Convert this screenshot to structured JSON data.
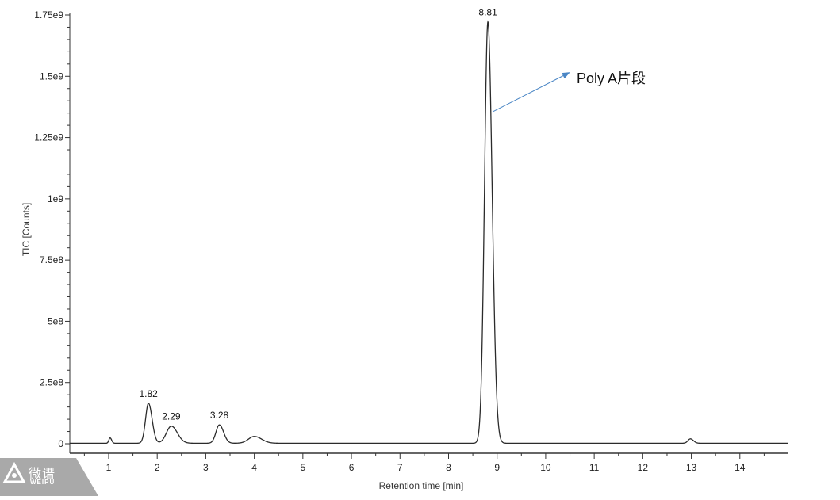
{
  "chart_data": {
    "type": "line",
    "title": "",
    "xlabel": "Retention time [min]",
    "ylabel": "TIC [Counts]",
    "xlim": [
      0.2,
      15.0
    ],
    "ylim": [
      0,
      1750000000
    ],
    "x_ticks": [
      1,
      2,
      3,
      4,
      5,
      6,
      7,
      8,
      9,
      10,
      11,
      12,
      13,
      14
    ],
    "x_tick_labels": [
      "1",
      "2",
      "3",
      "4",
      "5",
      "6",
      "7",
      "8",
      "9",
      "10",
      "11",
      "12",
      "13",
      "14"
    ],
    "y_ticks": [
      0,
      250000000,
      500000000,
      750000000,
      1000000000,
      1250000000,
      1500000000,
      1750000000
    ],
    "y_tick_labels": [
      "0",
      "2.5e8",
      "5e8",
      "7.5e8",
      "1e9",
      "1.25e9",
      "1.5e9",
      "1.75e9"
    ],
    "grid": false,
    "series": [
      {
        "baseline": 2000000,
        "peaks": [
          {
            "rt": 1.03,
            "height": 22000000
          },
          {
            "rt": 1.82,
            "height": 163000000
          },
          {
            "rt": 2.29,
            "height": 70000000
          },
          {
            "rt": 3.28,
            "height": 75000000
          },
          {
            "rt": 4.0,
            "height": 28000000
          },
          {
            "rt": 8.81,
            "height": 1720000000
          },
          {
            "rt": 12.98,
            "height": 18000000
          }
        ]
      }
    ],
    "peak_labels": [
      {
        "x": 1.82,
        "text": "1.82"
      },
      {
        "x": 2.29,
        "text": "2.29"
      },
      {
        "x": 3.28,
        "text": "3.28"
      },
      {
        "x": 8.81,
        "text": "8.81"
      }
    ],
    "annotations": [
      {
        "text": "Poly A片段",
        "target_x": 8.81,
        "target_y": 1355000000
      }
    ]
  },
  "watermark": {
    "chinese": "微谱",
    "english": "WEIPU"
  }
}
